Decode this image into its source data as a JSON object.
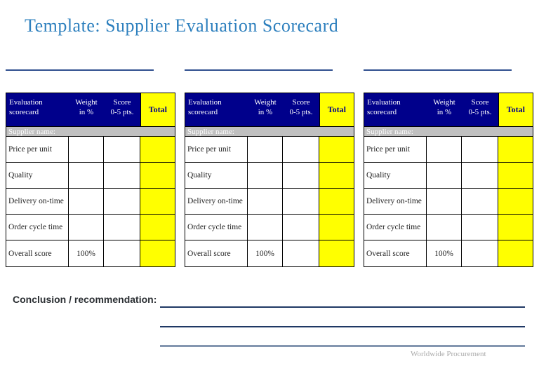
{
  "page": {
    "title": "Template: Supplier Evaluation Scorecard",
    "conclusion_label": "Conclusion / recommendation:",
    "footer_brand": "Worldwide Procurement"
  },
  "layout": {
    "scorecard_count": 3
  },
  "colors": {
    "title_blue": "#2e80be",
    "header_navy": "#00008b",
    "total_yellow": "#ffff00",
    "supplier_gray": "#c0c0c0",
    "blank_line_navy": "#30508f",
    "conclusion_line_navy": "#1f3864",
    "footer_line_gray": "#8496b0",
    "footer_text_gray": "#a9a9a9"
  },
  "scorecard": {
    "header": {
      "evaluation": "Evaluation\nscorecard",
      "weight": "Weight\nin %",
      "score": "Score\n0-5 pts.",
      "total": "Total"
    },
    "supplier_name_label": "Supplier name:",
    "rows": [
      {
        "label": "Price per unit",
        "weight": "",
        "score": "",
        "total": ""
      },
      {
        "label": "Quality",
        "weight": "",
        "score": "",
        "total": ""
      },
      {
        "label": "Delivery on-time",
        "weight": "",
        "score": "",
        "total": ""
      },
      {
        "label": "Order cycle time",
        "weight": "",
        "score": "",
        "total": ""
      },
      {
        "label": "Overall score",
        "weight": "100%",
        "score": "",
        "total": ""
      }
    ]
  }
}
